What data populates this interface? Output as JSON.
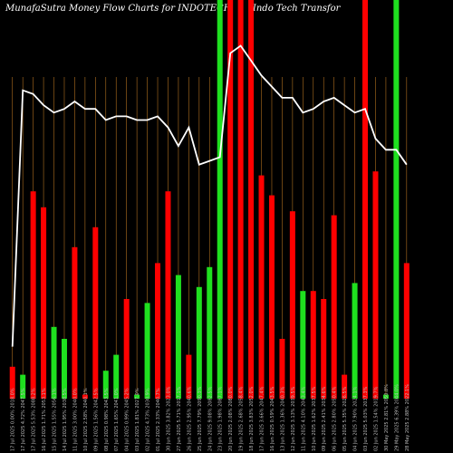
{
  "chart_data": {
    "type": "bar",
    "title": "MunafaSutra  Money Flow  Charts for INDOTECH",
    "subtitle": "(Indo  Tech Transfor",
    "categories": [
      "17 Jul 2025 0.00% 2018.0%",
      "17 Jul 2025 4.72% 2047.5%",
      "17 Jul 2025 5.53% 2088.2%",
      "16 Jul 2025 1.71% 2053.1%",
      "15 Jul 2025 1.55% 2056.1%",
      "14 Jul 2025 1.95% 2038.5%",
      "11 Jul 2025 3.00% 2040.0%",
      "10 Jul 2025 2.58% 2040.1%",
      "09 Jul 2025 1.56% 2042.5%",
      "08 Jul 2025 0.98% 2043.5%",
      "07 Jul 2025 1.65% 2041.0%",
      "04 Jul 2025 0.99% 2045.2%",
      "03 Jul 2025 1.81% 2027.0%",
      "02 Jul 2025 4.73% 2030.9%",
      "01 Jul 2025 2.33% 2040.7%",
      "30 Jun 2025 3.82% 2023.0%",
      "27 Jun 2025 5.71% 2017.1%",
      "26 Jun 2025 2.95% 2040.6%",
      "25 Jun 2025 7.79% 2090.3%",
      "24 Jun 2025 9.08% 2082.5%",
      "23 Jun 2025 1.98% 2087.1%",
      "20 Jun 2025 2.08% 2080.0%",
      "19 Jun 2025 2.68% 2058.4%",
      "18 Jun 2025 3.83% 2052.0%",
      "17 Jun 2025 3.66% 2047.4%",
      "16 Jun 2025 0.59% 2043.5%",
      "13 Jun 2025 1.36% 2040.3%",
      "12 Jun 2025 3.13% 2039.5%",
      "11 Jun 2025 4.10% 2043.4%",
      "10 Jun 2025 1.62% 2037.5%",
      "09 Jun 2025 2.41% 2034.6%",
      "06 Jun 2025 2.80% 2050.4%",
      "05 Jun 2025 5.35% 2026.5%",
      "04 Jun 2025 7.90% 2024.1%",
      "03 Jun 2025 5.03% 2037.3%",
      "02 Jun 2025 1.54% 2019.7%",
      "30 May 2025 2.81% 2050.8%",
      "29 May 2025 6.39% 2044.0%",
      "28 May 2025 2.88% 2022.1%"
    ],
    "values": [
      8,
      6,
      52,
      48,
      18,
      15,
      38,
      1,
      43,
      7,
      11,
      25,
      1,
      24,
      34,
      52,
      31,
      11,
      28,
      33,
      360,
      100,
      280,
      140,
      56,
      51,
      15,
      47,
      27,
      27,
      25,
      46,
      6,
      29,
      280,
      57,
      1,
      100,
      34
    ],
    "colors": [
      "red",
      "green",
      "red",
      "red",
      "green",
      "green",
      "red",
      "red",
      "red",
      "green",
      "green",
      "red",
      "green",
      "green",
      "red",
      "red",
      "green",
      "red",
      "green",
      "green",
      "green",
      "red",
      "red",
      "red",
      "red",
      "red",
      "red",
      "red",
      "green",
      "red",
      "red",
      "red",
      "red",
      "green",
      "red",
      "red",
      "green",
      "green",
      "red"
    ],
    "line": [
      14,
      83,
      82,
      79,
      77,
      78,
      80,
      78,
      78,
      75,
      76,
      76,
      75,
      75,
      76,
      73,
      68,
      73,
      63,
      64,
      65,
      93,
      95,
      91,
      87,
      84,
      81,
      81,
      77,
      78,
      80,
      81,
      79,
      77,
      78,
      70,
      67,
      67,
      63
    ],
    "palette": {
      "red": "#ff0000",
      "green": "#1fe01f",
      "line": "#ffffff",
      "grid": "#b07020",
      "background": "#000000"
    }
  }
}
